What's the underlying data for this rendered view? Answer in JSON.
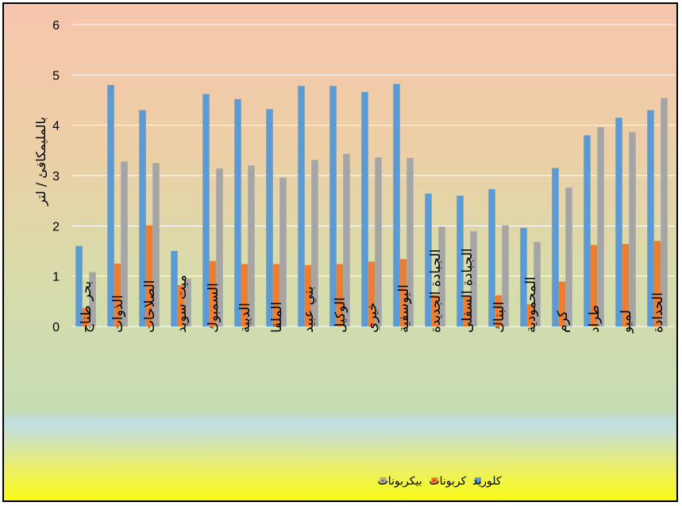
{
  "chart_data": {
    "type": "bar",
    "title": "",
    "ylabel": "بالمليمكافئ / لتر",
    "xlabel": "",
    "ylim": [
      0,
      6
    ],
    "yticks": [
      0,
      1,
      2,
      3,
      4,
      5,
      6
    ],
    "grid": true,
    "legend_position": "bottom",
    "categories": [
      "بحر طناج",
      "الذوات",
      "الصلاحات",
      "ميت سويد",
      "السمبوك",
      "الديبة",
      "الملقا",
      "بني عبيد",
      "الوكيل",
      "خيري",
      "اليوسفية",
      "الجبادة الجديدة",
      "الجبادة السفلى",
      "البناك",
      "المحمودية",
      "كرم",
      "طراد",
      "لميو",
      "الحدادة"
    ],
    "series": [
      {
        "name": "كلوريد",
        "color": "#5b9bd5",
        "values": [
          1.6,
          4.8,
          4.3,
          1.5,
          4.62,
          4.52,
          4.32,
          4.78,
          4.78,
          4.66,
          4.82,
          2.64,
          2.6,
          2.73,
          1.96,
          3.15,
          3.8,
          4.15,
          4.3
        ]
      },
      {
        "name": "كربونات",
        "color": "#ed7d31",
        "values": [
          0.37,
          1.25,
          2.01,
          0.82,
          1.3,
          1.24,
          1.24,
          1.22,
          1.24,
          1.29,
          1.34,
          0.63,
          0.59,
          0.62,
          0.44,
          0.89,
          1.62,
          1.64,
          1.7
        ]
      },
      {
        "name": "بيكربونات",
        "color": "#a5a5a5",
        "values": [
          1.08,
          3.28,
          3.25,
          0.95,
          3.14,
          3.2,
          2.96,
          3.31,
          3.43,
          3.36,
          3.35,
          1.98,
          1.89,
          2.01,
          1.68,
          2.76,
          3.96,
          3.86,
          4.54
        ]
      }
    ]
  }
}
